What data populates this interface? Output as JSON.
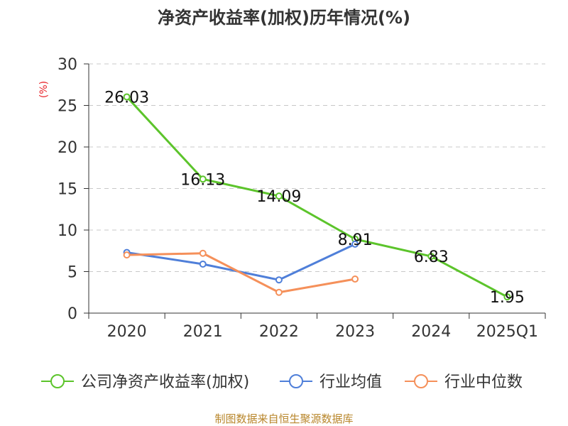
{
  "chart_data": {
    "type": "line",
    "title": "净资产收益率(加权)历年情况(%)",
    "ylabel": "(%)",
    "xlabel": "",
    "categories": [
      "2020",
      "2021",
      "2022",
      "2023",
      "2024",
      "2025Q1"
    ],
    "ylim": [
      0,
      30
    ],
    "yticks": [
      0,
      5,
      10,
      15,
      20,
      25,
      30
    ],
    "grid": true,
    "legend_position": "bottom",
    "series": [
      {
        "name": "公司净资产收益率(加权)",
        "color": "#5cc42b",
        "values": [
          26.03,
          16.13,
          14.09,
          8.91,
          6.83,
          1.95
        ],
        "labels": [
          "26.03",
          "16.13",
          "14.09",
          "8.91",
          "6.83",
          "1.95"
        ],
        "show_labels": true
      },
      {
        "name": "行业均值",
        "color": "#4f7fd9",
        "values": [
          7.3,
          5.9,
          4.0,
          8.3,
          null,
          null
        ],
        "show_labels": false
      },
      {
        "name": "行业中位数",
        "color": "#f5905a",
        "values": [
          7.0,
          7.2,
          2.5,
          4.1,
          null,
          null
        ],
        "show_labels": false
      }
    ]
  },
  "source": "制图数据来自恒生聚源数据库"
}
